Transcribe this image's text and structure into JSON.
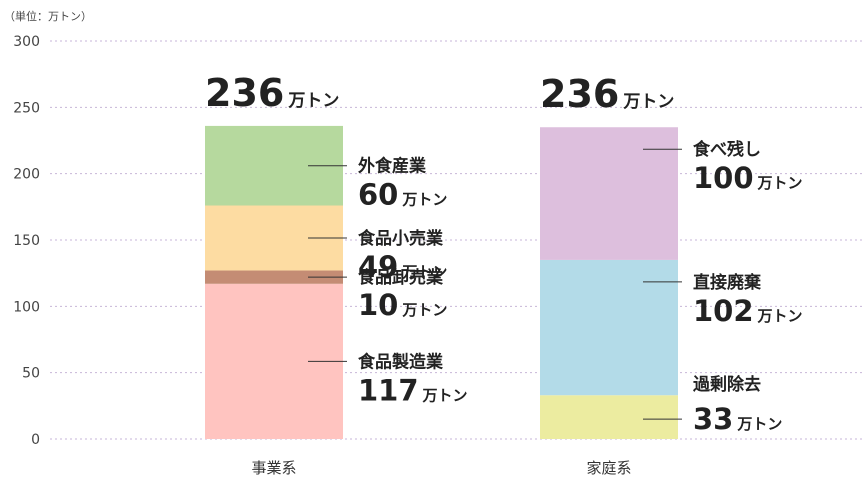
{
  "chart_data": {
    "type": "bar",
    "stacked": true,
    "unit_label": "（単位：万トン）",
    "ylim": [
      0,
      300
    ],
    "yticks": [
      0,
      50,
      100,
      150,
      200,
      250,
      300
    ],
    "grid": true,
    "total_unit": "万トン",
    "bars": [
      {
        "category": "事業系",
        "total": 236,
        "segments": [
          {
            "name": "食品製造業",
            "value": 117,
            "unit": "万トン",
            "color": "#ffc4c0"
          },
          {
            "name": "食品卸売業",
            "value": 10,
            "unit": "万トン",
            "color": "#c48c74"
          },
          {
            "name": "食品小売業",
            "value": 49,
            "unit": "万トン",
            "color": "#fddca2"
          },
          {
            "name": "外食産業",
            "value": 60,
            "unit": "万トン",
            "color": "#b6d99e"
          }
        ]
      },
      {
        "category": "家庭系",
        "total": 236,
        "segments": [
          {
            "name": "過剰除去",
            "value": 33,
            "unit": "万トン",
            "color": "#ececa0"
          },
          {
            "name": "直接廃棄",
            "value": 102,
            "unit": "万トン",
            "color": "#b3dbe8"
          },
          {
            "name": "食べ残し",
            "value": 100,
            "unit": "万トン",
            "color": "#ddbfdd"
          }
        ]
      }
    ]
  }
}
